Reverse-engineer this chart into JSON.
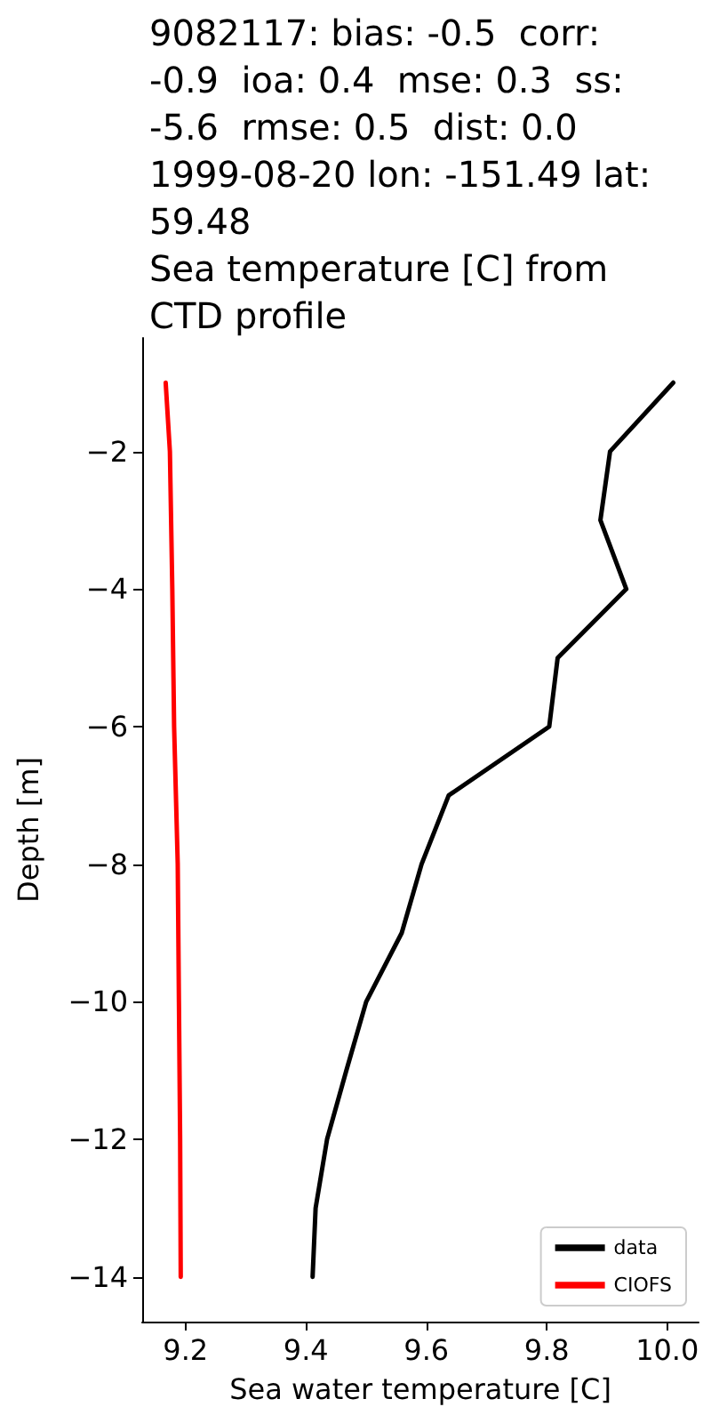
{
  "chart_data": {
    "type": "line",
    "title": "9082117: bias: -0.5  corr:\n-0.9  ioa: 0.4  mse: 0.3  ss:\n-5.6  rmse: 0.5  dist: 0.0\n1999-08-20 lon: -151.49 lat:\n59.48\nSea temperature [C] from\nCTD profile",
    "xlabel": "Sea water temperature [C]",
    "ylabel": "Depth [m]",
    "series": [
      {
        "name": "data",
        "color": "#000000",
        "x": [
          10.01,
          9.905,
          9.889,
          9.932,
          9.818,
          9.804,
          9.637,
          9.592,
          9.559,
          9.5,
          9.467,
          9.435,
          9.416,
          9.411
        ],
        "values": [
          -1,
          -2,
          -3,
          -4,
          -5,
          -6,
          -7,
          -8,
          -9,
          -10,
          -11,
          -12,
          -13,
          -14
        ]
      },
      {
        "name": "CIOFS",
        "color": "#ff0000",
        "x": [
          9.167,
          9.174,
          9.178,
          9.181,
          9.187,
          9.189,
          9.191,
          9.192
        ],
        "values": [
          -1,
          -2,
          -4,
          -6,
          -8,
          -10,
          -12,
          -14
        ]
      }
    ],
    "xlim": [
      9.128,
      10.052
    ],
    "ylim": [
      -14.65,
      -0.35
    ],
    "xticks": [
      9.2,
      9.4,
      9.6,
      9.8,
      {
        "value": 10,
        "label": "10.0"
      }
    ],
    "yticks": [
      {
        "value": -2,
        "label": "−2"
      },
      {
        "value": -4,
        "label": "−4"
      },
      {
        "value": -6,
        "label": "−6"
      },
      {
        "value": -8,
        "label": "−8"
      },
      {
        "value": -10,
        "label": "−10"
      },
      {
        "value": -12,
        "label": "−12"
      },
      {
        "value": -14,
        "label": "−14"
      }
    ],
    "legend": "bottom right",
    "grid": false,
    "marker": "none",
    "line_style": "solid"
  }
}
